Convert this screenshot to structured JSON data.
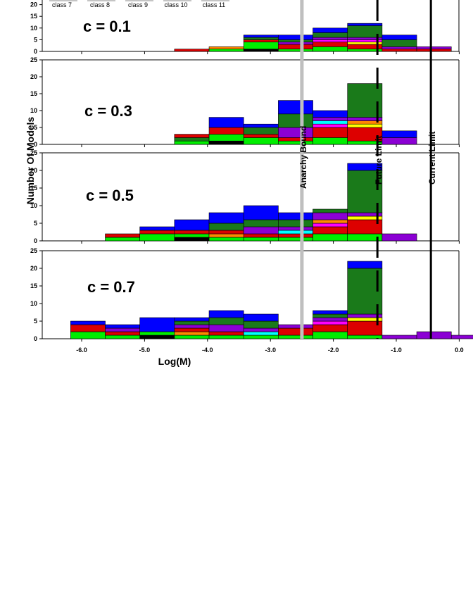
{
  "chart_data": {
    "type": "bar",
    "stacked": true,
    "ylabel": "Number Of Models",
    "xlabel": "Log(M)",
    "x_ticks": [
      -6.0,
      -5.0,
      -4.0,
      -3.0,
      -2.0,
      -1.0,
      0.0
    ],
    "x_tick_labels": [
      "-6.0",
      "-5.0",
      "-4.0",
      "-3.0",
      "-2.0",
      "-1.0",
      "0.0"
    ],
    "xlim": [
      -6.5,
      0.15
    ],
    "ylim": [
      0,
      25
    ],
    "y_ticks": [
      0,
      5,
      10,
      15,
      20,
      25
    ],
    "bin_width": 0.55,
    "class_colors": {
      "class 1": "#000000",
      "class 2": "#00ee00",
      "class 3": "#dd0000",
      "class 4": "#ff8800",
      "class 5": "#ffff00",
      "class 6": "#ff00ff",
      "class 7": "#00ffff",
      "class 8": "#8b00d4",
      "class 9": "#1a7a1a",
      "class 10": "#0000ff"
    },
    "legend_partial": [
      "class 7",
      "class 8",
      "class 9",
      "class 10",
      "class 11"
    ],
    "vertical_lines": [
      {
        "name": "Anarchy Bound",
        "x": -2.5,
        "color": "#bfbfbf",
        "style": "solid"
      },
      {
        "name": "Future Limit",
        "x": -1.3,
        "color": "#000000",
        "style": "dashed"
      },
      {
        "name": "Current Limit",
        "x": -0.45,
        "color": "#000000",
        "style": "solid"
      }
    ],
    "panels": [
      {
        "label": "c = 0.1",
        "bins": [
          {
            "x": -4.25,
            "stack": [
              [
                "class 3",
                1
              ]
            ]
          },
          {
            "x": -3.7,
            "stack": [
              [
                "class 2",
                1
              ],
              [
                "class 4",
                1
              ]
            ]
          },
          {
            "x": -3.15,
            "stack": [
              [
                "class 1",
                1
              ],
              [
                "class 2",
                3
              ],
              [
                "class 3",
                1
              ],
              [
                "class 9",
                1
              ],
              [
                "class 10",
                1
              ]
            ]
          },
          {
            "x": -2.6,
            "stack": [
              [
                "class 2",
                1
              ],
              [
                "class 3",
                2
              ],
              [
                "class 8",
                1
              ],
              [
                "class 9",
                1
              ],
              [
                "class 10",
                2
              ]
            ]
          },
          {
            "x": -2.05,
            "stack": [
              [
                "class 2",
                2
              ],
              [
                "class 3",
                2
              ],
              [
                "class 6",
                1
              ],
              [
                "class 8",
                1
              ],
              [
                "class 9",
                2
              ],
              [
                "class 10",
                2
              ]
            ]
          },
          {
            "x": -1.5,
            "stack": [
              [
                "class 2",
                1
              ],
              [
                "class 3",
                2
              ],
              [
                "class 5",
                1
              ],
              [
                "class 6",
                1
              ],
              [
                "class 8",
                1
              ],
              [
                "class 9",
                5
              ],
              [
                "class 10",
                1
              ]
            ]
          },
          {
            "x": -0.95,
            "stack": [
              [
                "class 3",
                1
              ],
              [
                "class 8",
                1
              ],
              [
                "class 9",
                3
              ],
              [
                "class 10",
                2
              ]
            ]
          },
          {
            "x": -0.4,
            "stack": [
              [
                "class 3",
                1
              ],
              [
                "class 8",
                1
              ]
            ]
          }
        ]
      },
      {
        "label": "c = 0.3",
        "bins": [
          {
            "x": -4.25,
            "stack": [
              [
                "class 2",
                1
              ],
              [
                "class 9",
                1
              ],
              [
                "class 3",
                1
              ]
            ]
          },
          {
            "x": -3.7,
            "stack": [
              [
                "class 1",
                1
              ],
              [
                "class 2",
                2
              ],
              [
                "class 3",
                2
              ],
              [
                "class 10",
                3
              ]
            ]
          },
          {
            "x": -3.15,
            "stack": [
              [
                "class 2",
                2
              ],
              [
                "class 3",
                1
              ],
              [
                "class 9",
                2
              ],
              [
                "class 10",
                1
              ]
            ]
          },
          {
            "x": -2.6,
            "stack": [
              [
                "class 2",
                1
              ],
              [
                "class 3",
                1
              ],
              [
                "class 8",
                3
              ],
              [
                "class 9",
                4
              ],
              [
                "class 10",
                4
              ]
            ]
          },
          {
            "x": -2.05,
            "stack": [
              [
                "class 2",
                2
              ],
              [
                "class 3",
                3
              ],
              [
                "class 6",
                1
              ],
              [
                "class 7",
                1
              ],
              [
                "class 8",
                1
              ],
              [
                "class 10",
                2
              ]
            ]
          },
          {
            "x": -1.5,
            "stack": [
              [
                "class 2",
                1
              ],
              [
                "class 3",
                4
              ],
              [
                "class 5",
                1
              ],
              [
                "class 4",
                1
              ],
              [
                "class 8",
                1
              ],
              [
                "class 9",
                10
              ]
            ]
          },
          {
            "x": -0.95,
            "stack": [
              [
                "class 8",
                2
              ],
              [
                "class 10",
                2
              ]
            ]
          }
        ]
      },
      {
        "label": "c = 0.5",
        "bins": [
          {
            "x": -5.35,
            "stack": [
              [
                "class 2",
                1
              ],
              [
                "class 3",
                1
              ]
            ]
          },
          {
            "x": -4.8,
            "stack": [
              [
                "class 2",
                2
              ],
              [
                "class 3",
                1
              ],
              [
                "class 10",
                1
              ]
            ]
          },
          {
            "x": -4.25,
            "stack": [
              [
                "class 1",
                1
              ],
              [
                "class 2",
                1
              ],
              [
                "class 3",
                1
              ],
              [
                "class 10",
                3
              ]
            ]
          },
          {
            "x": -3.7,
            "stack": [
              [
                "class 2",
                1
              ],
              [
                "class 4",
                1
              ],
              [
                "class 3",
                1
              ],
              [
                "class 9",
                2
              ],
              [
                "class 10",
                3
              ]
            ]
          },
          {
            "x": -3.15,
            "stack": [
              [
                "class 2",
                1
              ],
              [
                "class 3",
                1
              ],
              [
                "class 8",
                2
              ],
              [
                "class 9",
                2
              ],
              [
                "class 10",
                4
              ]
            ]
          },
          {
            "x": -2.6,
            "stack": [
              [
                "class 2",
                1
              ],
              [
                "class 3",
                1
              ],
              [
                "class 7",
                1
              ],
              [
                "class 8",
                1
              ],
              [
                "class 9",
                2
              ],
              [
                "class 10",
                2
              ]
            ]
          },
          {
            "x": -2.05,
            "stack": [
              [
                "class 2",
                2
              ],
              [
                "class 3",
                2
              ],
              [
                "class 6",
                1
              ],
              [
                "class 4",
                1
              ],
              [
                "class 8",
                2
              ],
              [
                "class 9",
                1
              ]
            ]
          },
          {
            "x": -1.5,
            "stack": [
              [
                "class 2",
                2
              ],
              [
                "class 3",
                4
              ],
              [
                "class 5",
                1
              ],
              [
                "class 8",
                1
              ],
              [
                "class 9",
                12
              ],
              [
                "class 10",
                2
              ]
            ]
          },
          {
            "x": -0.95,
            "stack": [
              [
                "class 8",
                2
              ]
            ]
          }
        ]
      },
      {
        "label": "c = 0.7",
        "bins": [
          {
            "x": -5.9,
            "stack": [
              [
                "class 2",
                2
              ],
              [
                "class 3",
                2
              ],
              [
                "class 10",
                1
              ]
            ]
          },
          {
            "x": -5.35,
            "stack": [
              [
                "class 2",
                1
              ],
              [
                "class 3",
                1
              ],
              [
                "class 8",
                1
              ],
              [
                "class 10",
                1
              ]
            ]
          },
          {
            "x": -4.8,
            "stack": [
              [
                "class 1",
                1
              ],
              [
                "class 2",
                1
              ],
              [
                "class 10",
                4
              ]
            ]
          },
          {
            "x": -4.25,
            "stack": [
              [
                "class 2",
                1
              ],
              [
                "class 4",
                1
              ],
              [
                "class 3",
                1
              ],
              [
                "class 8",
                1
              ],
              [
                "class 9",
                1
              ],
              [
                "class 10",
                1
              ]
            ]
          },
          {
            "x": -3.7,
            "stack": [
              [
                "class 2",
                1
              ],
              [
                "class 3",
                1
              ],
              [
                "class 8",
                2
              ],
              [
                "class 9",
                2
              ],
              [
                "class 10",
                2
              ]
            ]
          },
          {
            "x": -3.15,
            "stack": [
              [
                "class 2",
                1
              ],
              [
                "class 7",
                1
              ],
              [
                "class 8",
                1
              ],
              [
                "class 9",
                2
              ],
              [
                "class 10",
                2
              ]
            ]
          },
          {
            "x": -2.6,
            "stack": [
              [
                "class 2",
                1
              ],
              [
                "class 3",
                2
              ],
              [
                "class 8",
                1
              ]
            ]
          },
          {
            "x": -2.05,
            "stack": [
              [
                "class 2",
                2
              ],
              [
                "class 3",
                2
              ],
              [
                "class 6",
                1
              ],
              [
                "class 8",
                1
              ],
              [
                "class 9",
                1
              ],
              [
                "class 10",
                1
              ]
            ]
          },
          {
            "x": -1.5,
            "stack": [
              [
                "class 2",
                1
              ],
              [
                "class 3",
                4
              ],
              [
                "class 5",
                1
              ],
              [
                "class 8",
                1
              ],
              [
                "class 9",
                13
              ],
              [
                "class 10",
                2
              ]
            ]
          },
          {
            "x": -0.95,
            "stack": [
              [
                "class 8",
                1
              ]
            ]
          },
          {
            "x": -0.4,
            "stack": [
              [
                "class 8",
                2
              ]
            ]
          },
          {
            "x": 0.15,
            "stack": [
              [
                "class 8",
                1
              ]
            ]
          }
        ]
      }
    ]
  }
}
